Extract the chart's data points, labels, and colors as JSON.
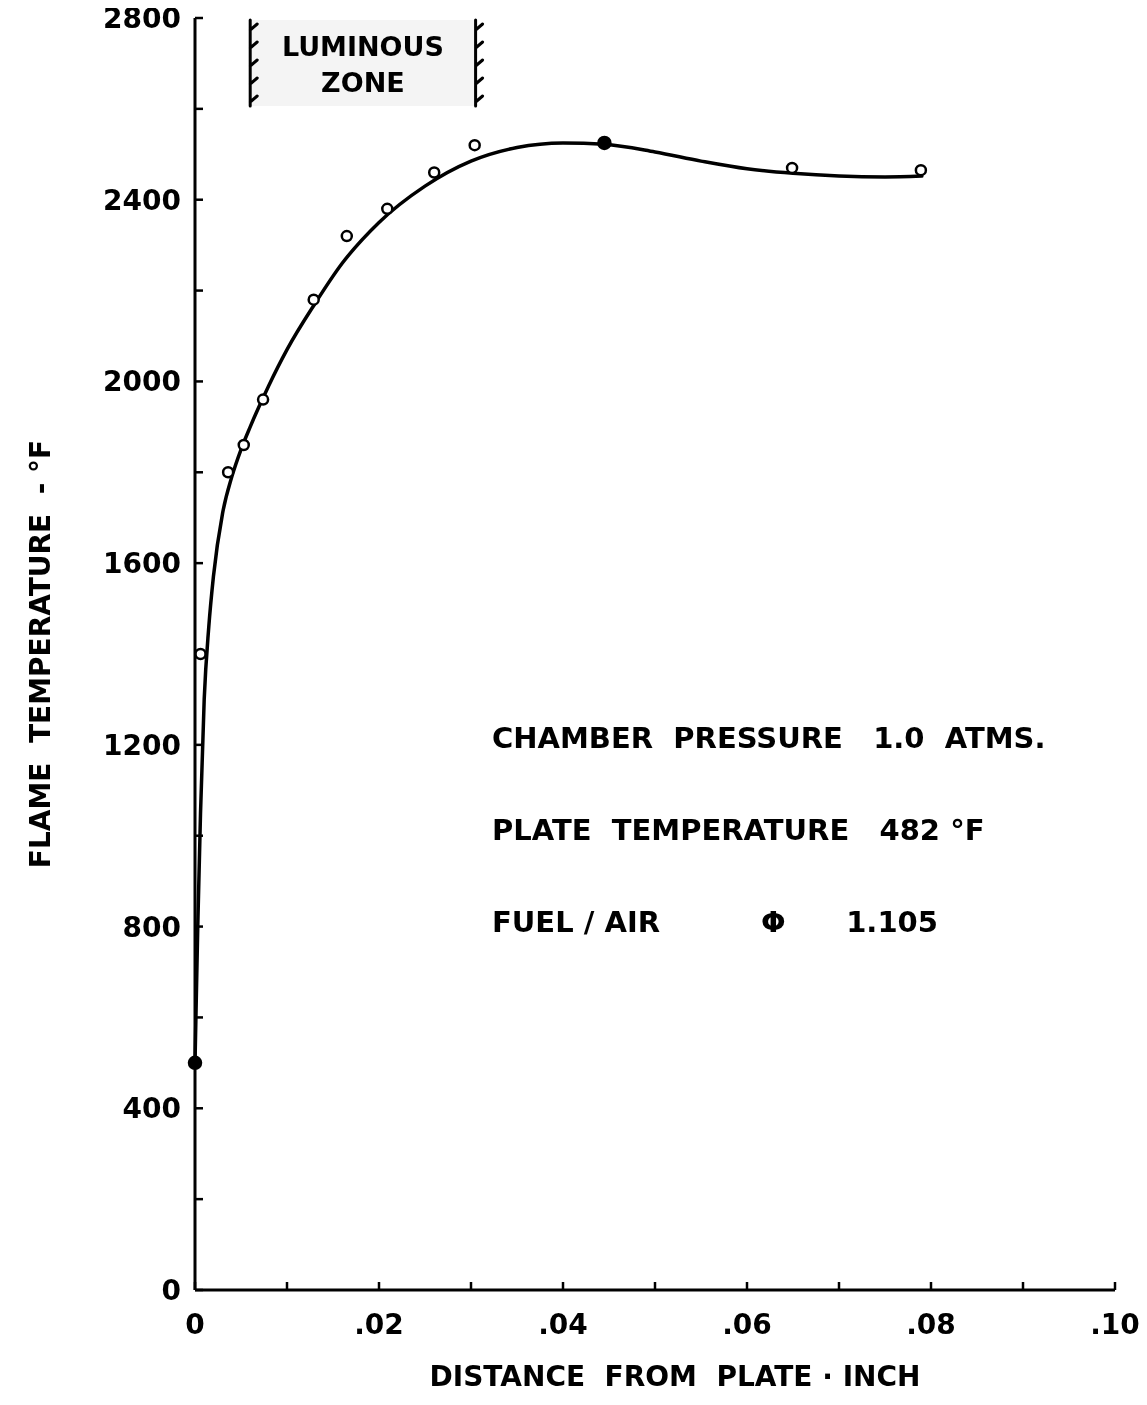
{
  "chart_data": {
    "type": "scatter",
    "xlabel": "DISTANCE  FROM  PLATE · INCH",
    "ylabel": "FLAME  TEMPERATURE  - °F",
    "xlim": [
      0,
      0.1
    ],
    "ylim": [
      0,
      2800
    ],
    "xticks": [
      {
        "value": 0,
        "label": "0"
      },
      {
        "value": 0.01,
        "label": null
      },
      {
        "value": 0.02,
        "label": ".02"
      },
      {
        "value": 0.03,
        "label": null
      },
      {
        "value": 0.04,
        "label": ".04"
      },
      {
        "value": 0.05,
        "label": null
      },
      {
        "value": 0.06,
        "label": ".06"
      },
      {
        "value": 0.07,
        "label": null
      },
      {
        "value": 0.08,
        "label": ".08"
      },
      {
        "value": 0.09,
        "label": null
      },
      {
        "value": 0.1,
        "label": ".10"
      }
    ],
    "yticks": [
      0,
      {
        "value": 200,
        "label": null
      },
      400,
      {
        "value": 600,
        "label": null
      },
      800,
      {
        "value": 1000,
        "label": null
      },
      1200,
      {
        "value": 1400,
        "label": null
      },
      1600,
      {
        "value": 1800,
        "label": null
      },
      2000,
      {
        "value": 2200,
        "label": null
      },
      2400,
      {
        "value": 2600,
        "label": null
      },
      2800
    ],
    "grid": false,
    "series": [
      {
        "type": "line",
        "color": "#000000",
        "x": [
          0,
          0.0003,
          0.0006,
          0.001,
          0.0015,
          0.002,
          0.003,
          0.004,
          0.005,
          0.006,
          0.008,
          0.01,
          0.013,
          0.016,
          0.02,
          0.025,
          0.03,
          0.035,
          0.04,
          0.0445,
          0.05,
          0.055,
          0.06,
          0.065,
          0.07,
          0.075,
          0.079
        ],
        "values": [
          500,
          800,
          1050,
          1300,
          1460,
          1570,
          1710,
          1790,
          1850,
          1900,
          1990,
          2070,
          2170,
          2260,
          2350,
          2430,
          2485,
          2515,
          2525,
          2522,
          2505,
          2485,
          2468,
          2458,
          2452,
          2450,
          2452
        ]
      },
      {
        "color": "#000000",
        "marker": "circle",
        "x": [
          0.0006,
          0.0036,
          0.0053,
          0.0074,
          0.0129,
          0.0165,
          0.0209,
          0.026,
          0.0304,
          0.0649,
          0.0789
        ],
        "values": [
          1400,
          1800,
          1860,
          1960,
          2180,
          2320,
          2380,
          2460,
          2520,
          2470,
          2465
        ]
      },
      {
        "color": "#000000",
        "marker": "circle",
        "x": [
          0,
          0.0445
        ],
        "values": [
          500,
          2525
        ]
      }
    ],
    "bands": [
      {
        "axis": "x",
        "from": 0.006,
        "to": 0.0305,
        "label": "LUMINOUS ZONE"
      }
    ],
    "annotations": [
      "CHAMBER  PRESSURE   1.0  ATMS.",
      "PLATE  TEMPERATURE   482 °F",
      "FUEL / AIR          Φ      1.105"
    ]
  }
}
